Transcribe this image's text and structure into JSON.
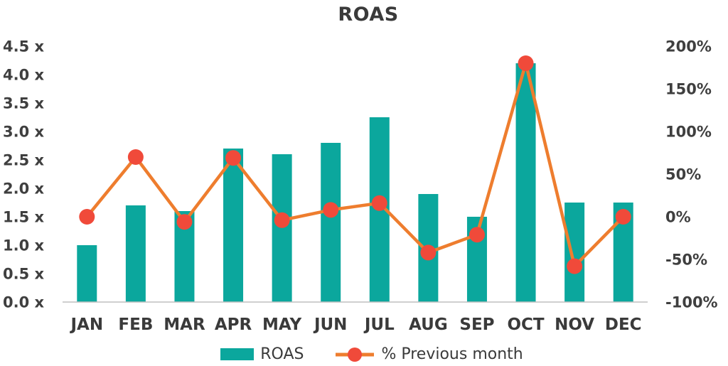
{
  "chart_data": {
    "type": "bar",
    "subtype": "combo-bar-line-dual-axis",
    "title": "ROAS",
    "categories": [
      "JAN",
      "FEB",
      "MAR",
      "APR",
      "MAY",
      "JUN",
      "JUL",
      "AUG",
      "SEP",
      "OCT",
      "NOV",
      "DEC"
    ],
    "series": [
      {
        "name": "ROAS",
        "type": "bar",
        "axis": "left",
        "values": [
          1.0,
          1.7,
          1.6,
          2.7,
          2.6,
          2.8,
          3.25,
          1.9,
          1.5,
          4.2,
          1.75,
          1.75
        ]
      },
      {
        "name": "% Previous month",
        "type": "line",
        "axis": "right",
        "values": [
          0,
          70,
          -6,
          69,
          -4,
          8,
          16,
          -42,
          -21,
          180,
          -58,
          0
        ]
      }
    ],
    "left_axis": {
      "min": 0,
      "max": 4.5,
      "tick_labels": [
        "0.0 x",
        "0.5 x",
        "1.0 x",
        "1.5 x",
        "2.0 x",
        "2.5 x",
        "3.0 x",
        "3.5 x",
        "4.0 x",
        "4.5 x"
      ],
      "tick_values": [
        0,
        0.5,
        1.0,
        1.5,
        2.0,
        2.5,
        3.0,
        3.5,
        4.0,
        4.5
      ]
    },
    "right_axis": {
      "min": -100,
      "max": 200,
      "tick_labels": [
        "-100%",
        "-50%",
        "0%",
        "50%",
        "100%",
        "150%",
        "200%"
      ],
      "tick_values": [
        -100,
        -50,
        0,
        50,
        100,
        150,
        200
      ]
    },
    "legend_position": "bottom",
    "grid": false,
    "colors": {
      "bar": "#0ba79d",
      "line": "#ee7d2e",
      "marker": "#f04a3a",
      "axis_line": "#bfbfbf",
      "text": "#3f3f3f"
    }
  }
}
